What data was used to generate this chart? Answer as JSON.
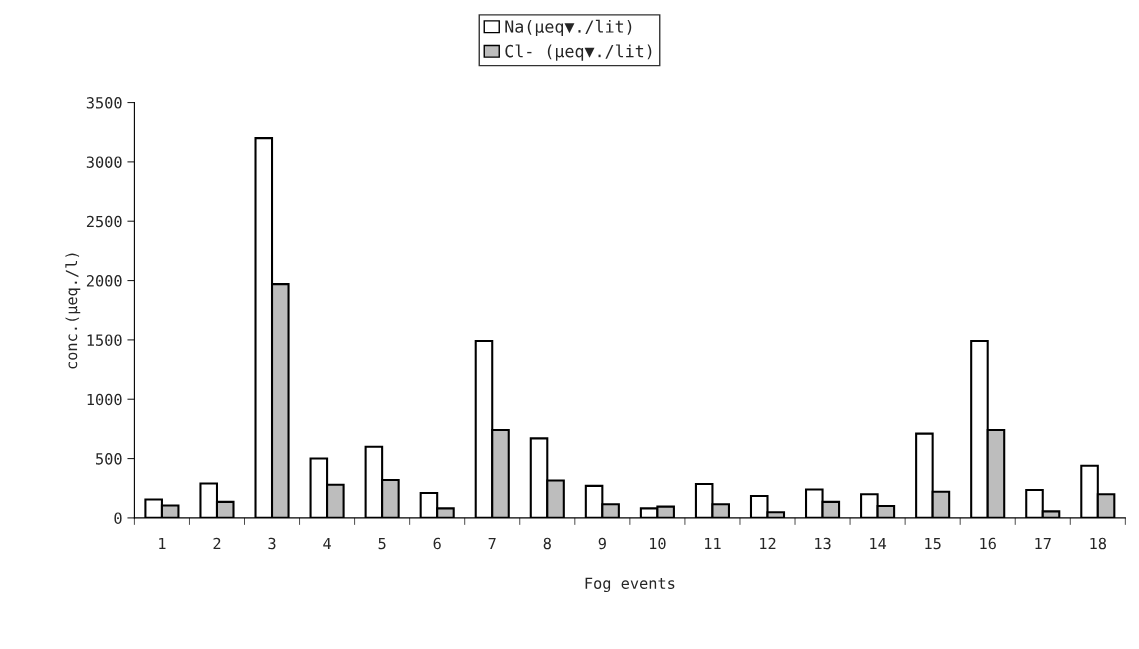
{
  "chart_data": {
    "type": "bar",
    "xlabel": "Fog events",
    "ylabel": "conc.(μeq./l)",
    "categories": [
      "1",
      "2",
      "3",
      "4",
      "5",
      "6",
      "7",
      "8",
      "9",
      "10",
      "11",
      "12",
      "13",
      "14",
      "15",
      "16",
      "17",
      "18"
    ],
    "series": [
      {
        "name": "Na(μeq▼./lit)",
        "color": "#ffffff",
        "values": [
          155,
          290,
          3200,
          500,
          600,
          210,
          1490,
          670,
          270,
          80,
          285,
          185,
          240,
          200,
          710,
          1490,
          235,
          440
        ]
      },
      {
        "name": "Cl- (μeq▼./lit)",
        "color": "#bdbdbd",
        "values": [
          105,
          135,
          1970,
          280,
          320,
          80,
          740,
          315,
          115,
          95,
          115,
          48,
          135,
          100,
          220,
          740,
          55,
          200
        ]
      }
    ],
    "ylim": [
      0,
      3500
    ],
    "yticks": [
      0,
      500,
      1000,
      1500,
      2000,
      2500,
      3000,
      3500
    ],
    "grid": false,
    "legend": "top"
  }
}
